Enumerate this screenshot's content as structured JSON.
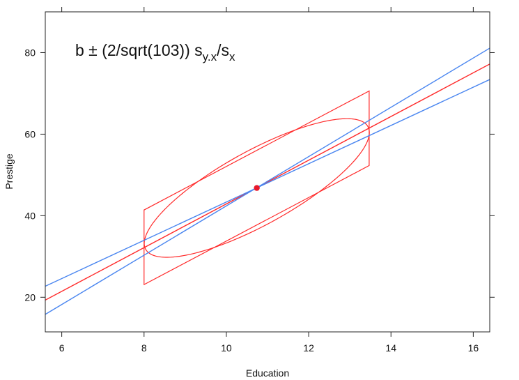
{
  "chart_data": {
    "type": "line",
    "title": "",
    "xlabel": "Education",
    "ylabel": "Prestige",
    "xlim": [
      5.6,
      16.4
    ],
    "ylim": [
      11.5,
      90
    ],
    "xticks": [
      6,
      8,
      10,
      12,
      14,
      16
    ],
    "yticks": [
      20,
      40,
      60,
      80
    ],
    "grid": false,
    "annotation": {
      "prefix": "b ± (2/sqrt(103)) s",
      "sub1": "y.x",
      "mid": "/s",
      "sub2": "x"
    },
    "center_point": {
      "x": 10.74,
      "y": 46.8,
      "color": "#e8192c"
    },
    "series": [
      {
        "values": [
          [
            5.6,
            19.3
          ],
          [
            16.4,
            77.2
          ]
        ],
        "color": "#ff2a2a"
      },
      {
        "values": [
          [
            5.6,
            15.8
          ],
          [
            16.4,
            81.1
          ]
        ],
        "color": "#4a86f0"
      },
      {
        "values": [
          [
            5.6,
            22.7
          ],
          [
            16.4,
            73.4
          ]
        ],
        "color": "#4a86f0"
      }
    ],
    "parallelogram": {
      "points": [
        [
          8.0,
          23.1
        ],
        [
          8.0,
          41.4
        ],
        [
          13.47,
          70.6
        ],
        [
          13.47,
          52.3
        ]
      ],
      "color": "#ff2a2a"
    },
    "ellipse": {
      "center": [
        10.74,
        46.8
      ],
      "sx": 2.735,
      "sy": 17.0,
      "r": 0.8,
      "color": "#ff2a2a"
    }
  }
}
